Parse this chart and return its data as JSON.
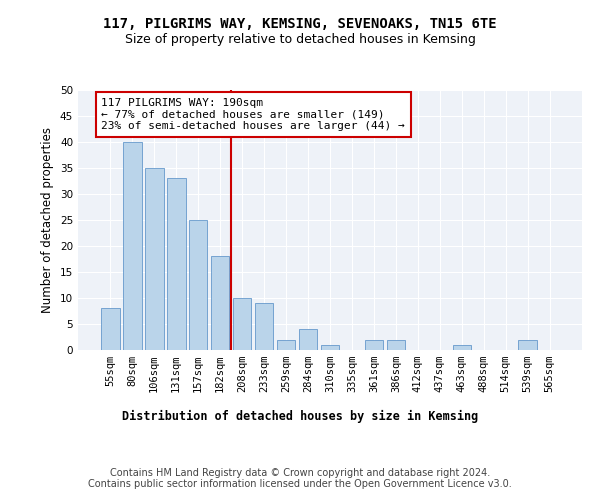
{
  "title_line1": "117, PILGRIMS WAY, KEMSING, SEVENOAKS, TN15 6TE",
  "title_line2": "Size of property relative to detached houses in Kemsing",
  "xlabel": "Distribution of detached houses by size in Kemsing",
  "ylabel": "Number of detached properties",
  "categories": [
    "55sqm",
    "80sqm",
    "106sqm",
    "131sqm",
    "157sqm",
    "182sqm",
    "208sqm",
    "233sqm",
    "259sqm",
    "284sqm",
    "310sqm",
    "335sqm",
    "361sqm",
    "386sqm",
    "412sqm",
    "437sqm",
    "463sqm",
    "488sqm",
    "514sqm",
    "539sqm",
    "565sqm"
  ],
  "values": [
    8,
    40,
    35,
    33,
    25,
    18,
    10,
    9,
    2,
    4,
    1,
    0,
    2,
    2,
    0,
    0,
    1,
    0,
    0,
    2,
    0
  ],
  "bar_color": "#bad4ea",
  "bar_edge_color": "#6699cc",
  "vline_x": 5.5,
  "vline_color": "#cc0000",
  "annotation_text": "117 PILGRIMS WAY: 190sqm\n← 77% of detached houses are smaller (149)\n23% of semi-detached houses are larger (44) →",
  "annotation_box_color": "#ffffff",
  "annotation_edge_color": "#cc0000",
  "ylim": [
    0,
    50
  ],
  "yticks": [
    0,
    5,
    10,
    15,
    20,
    25,
    30,
    35,
    40,
    45,
    50
  ],
  "background_color": "#eef2f8",
  "grid_color": "#ffffff",
  "footer_text": "Contains HM Land Registry data © Crown copyright and database right 2024.\nContains public sector information licensed under the Open Government Licence v3.0.",
  "title_fontsize": 10,
  "subtitle_fontsize": 9,
  "axis_label_fontsize": 8.5,
  "tick_fontsize": 7.5,
  "annotation_fontsize": 8,
  "footer_fontsize": 7
}
